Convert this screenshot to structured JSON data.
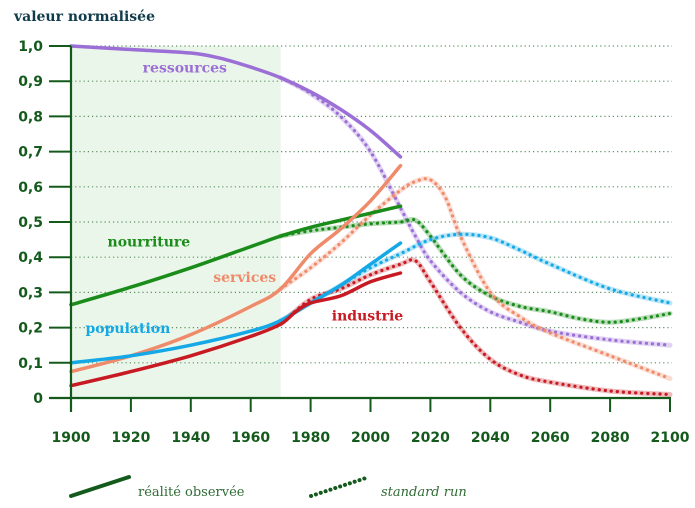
{
  "chart_data": {
    "type": "line",
    "title": "",
    "ylabel": "valeur normalisée",
    "xlabel": "",
    "xlim": [
      1900,
      2100
    ],
    "ylim": [
      0,
      1.0
    ],
    "grid": true,
    "x_ticks": [
      "1900",
      "1920",
      "1940",
      "1960",
      "1980",
      "2000",
      "2020",
      "2040",
      "2060",
      "2080",
      "2100"
    ],
    "x_tick_values": [
      1900,
      1920,
      1940,
      1960,
      1980,
      2000,
      2020,
      2040,
      2060,
      2080,
      2100
    ],
    "y_ticks": [
      "0",
      "0,1",
      "0,2",
      "0,3",
      "0,4",
      "0,5",
      "0,6",
      "0,7",
      "0,8",
      "0,9",
      "1,0"
    ],
    "y_tick_values": [
      0,
      0.1,
      0.2,
      0.3,
      0.4,
      0.5,
      0.6,
      0.7,
      0.8,
      0.9,
      1.0
    ],
    "highlight_span": [
      1900,
      1970
    ],
    "colors": {
      "axis": "#145a1c",
      "grid": "#5f8f63",
      "highlight": "#eaf6ea",
      "ressources": "#9b6fd6",
      "nourriture": "#1a8c1a",
      "services": "#ef8a6a",
      "population": "#14a9e6",
      "industrie": "#c71a22"
    },
    "series": [
      {
        "name": "ressources",
        "kind": "observed",
        "x": [
          1900,
          1920,
          1940,
          1950,
          1960,
          1970,
          1980,
          1990,
          2000,
          2010
        ],
        "y": [
          1.0,
          0.99,
          0.98,
          0.965,
          0.94,
          0.91,
          0.87,
          0.82,
          0.76,
          0.685
        ]
      },
      {
        "name": "ressources",
        "kind": "standard run",
        "x": [
          1970,
          1980,
          1990,
          2000,
          2010,
          2015,
          2020,
          2030,
          2040,
          2050,
          2060,
          2080,
          2100
        ],
        "y": [
          0.91,
          0.865,
          0.8,
          0.7,
          0.54,
          0.46,
          0.39,
          0.3,
          0.245,
          0.215,
          0.19,
          0.165,
          0.15
        ]
      },
      {
        "name": "nourriture",
        "kind": "observed",
        "x": [
          1900,
          1920,
          1940,
          1960,
          1970,
          1980,
          1990,
          2000,
          2010
        ],
        "y": [
          0.265,
          0.315,
          0.37,
          0.43,
          0.46,
          0.485,
          0.505,
          0.525,
          0.545
        ]
      },
      {
        "name": "nourriture",
        "kind": "standard run",
        "x": [
          1970,
          1980,
          1990,
          2000,
          2010,
          2015,
          2020,
          2030,
          2040,
          2050,
          2060,
          2070,
          2080,
          2090,
          2100
        ],
        "y": [
          0.46,
          0.475,
          0.485,
          0.495,
          0.5,
          0.505,
          0.46,
          0.35,
          0.29,
          0.26,
          0.245,
          0.225,
          0.215,
          0.225,
          0.24
        ]
      },
      {
        "name": "services",
        "kind": "observed",
        "x": [
          1900,
          1920,
          1940,
          1960,
          1970,
          1980,
          1990,
          2000,
          2010
        ],
        "y": [
          0.075,
          0.12,
          0.18,
          0.26,
          0.31,
          0.41,
          0.48,
          0.56,
          0.66
        ]
      },
      {
        "name": "services",
        "kind": "standard run",
        "x": [
          1970,
          1980,
          1990,
          2000,
          2010,
          2015,
          2020,
          2025,
          2030,
          2040,
          2050,
          2060,
          2080,
          2100
        ],
        "y": [
          0.31,
          0.37,
          0.44,
          0.52,
          0.59,
          0.615,
          0.62,
          0.57,
          0.46,
          0.3,
          0.23,
          0.185,
          0.12,
          0.055
        ]
      },
      {
        "name": "population",
        "kind": "observed",
        "x": [
          1900,
          1920,
          1940,
          1960,
          1970,
          1980,
          1990,
          2000,
          2010
        ],
        "y": [
          0.1,
          0.12,
          0.15,
          0.19,
          0.22,
          0.27,
          0.32,
          0.38,
          0.44
        ]
      },
      {
        "name": "population",
        "kind": "standard run",
        "x": [
          1970,
          1980,
          1990,
          2000,
          2010,
          2020,
          2030,
          2040,
          2050,
          2060,
          2080,
          2100
        ],
        "y": [
          0.22,
          0.27,
          0.32,
          0.37,
          0.41,
          0.45,
          0.465,
          0.455,
          0.42,
          0.38,
          0.31,
          0.27
        ]
      },
      {
        "name": "industrie",
        "kind": "observed",
        "x": [
          1900,
          1920,
          1940,
          1960,
          1970,
          1975,
          1980,
          1990,
          2000,
          2010
        ],
        "y": [
          0.035,
          0.075,
          0.12,
          0.175,
          0.21,
          0.245,
          0.27,
          0.29,
          0.33,
          0.355
        ]
      },
      {
        "name": "industrie",
        "kind": "standard run",
        "x": [
          1970,
          1980,
          1990,
          2000,
          2010,
          2015,
          2020,
          2030,
          2040,
          2050,
          2060,
          2080,
          2100
        ],
        "y": [
          0.21,
          0.28,
          0.31,
          0.35,
          0.38,
          0.39,
          0.33,
          0.2,
          0.11,
          0.065,
          0.045,
          0.02,
          0.01
        ]
      }
    ],
    "annotations": [
      {
        "text": "ressources",
        "series": "ressources",
        "at": [
          1938,
          0.925
        ]
      },
      {
        "text": "nourriture",
        "series": "nourriture",
        "at": [
          1926,
          0.43
        ]
      },
      {
        "text": "services",
        "series": "services",
        "at": [
          1958,
          0.33
        ]
      },
      {
        "text": "population",
        "series": "population",
        "at": [
          1919,
          0.185
        ]
      },
      {
        "text": "industrie",
        "series": "industrie",
        "at": [
          1999,
          0.22
        ]
      }
    ],
    "legend": {
      "placement": "bottom",
      "entries": [
        {
          "label": "réalité observée",
          "style": "solid"
        },
        {
          "label": "standard run",
          "style": "dotted"
        }
      ]
    }
  }
}
